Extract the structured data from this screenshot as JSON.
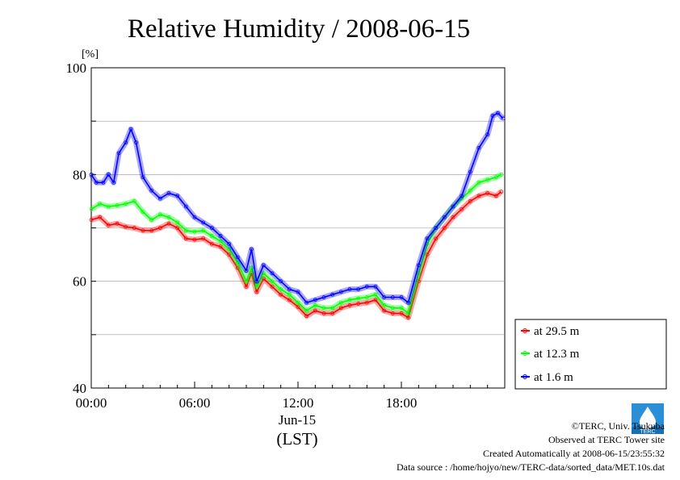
{
  "chart_data": {
    "type": "line",
    "title": "Relative Humidity / 2008-06-15",
    "ylabel": "[%]",
    "xlabel": "(LST)",
    "date_label": "Jun-15",
    "ylim": [
      40,
      100
    ],
    "yticks": [
      "40",
      "60",
      "80",
      "100"
    ],
    "xlim": [
      0,
      24
    ],
    "xticks": [
      "00:00",
      "06:00",
      "12:00",
      "18:00"
    ],
    "grid": true,
    "legend_position": "right",
    "series": [
      {
        "name": "at 29.5 m",
        "color": "#ff0000",
        "x": [
          0,
          0.5,
          1,
          1.5,
          2,
          2.5,
          3,
          3.5,
          4,
          4.5,
          5,
          5.5,
          6,
          6.5,
          7,
          7.5,
          8,
          8.5,
          9,
          9.3,
          9.6,
          10,
          10.5,
          11,
          11.5,
          12,
          12.5,
          13,
          13.5,
          14,
          14.5,
          15,
          15.5,
          16,
          16.5,
          17,
          17.5,
          18,
          18.4,
          19,
          19.5,
          20,
          20.5,
          21,
          21.5,
          22,
          22.5,
          23,
          23.5,
          23.8
        ],
        "values": [
          71.5,
          72,
          70.5,
          70.8,
          70.2,
          70,
          69.5,
          69.5,
          70,
          70.8,
          70,
          68,
          67.8,
          68,
          67,
          66.5,
          65,
          62.5,
          59,
          61.5,
          58,
          60.5,
          59,
          57.5,
          56.5,
          55.2,
          53.5,
          54.5,
          54,
          54,
          55,
          55.5,
          55.8,
          56,
          56.5,
          54.5,
          54,
          54,
          53.2,
          60,
          65,
          68,
          70,
          72,
          73.5,
          75,
          76,
          76.5,
          76,
          76.8
        ]
      },
      {
        "name": "at 12.3 m",
        "color": "#00ff00",
        "x": [
          0,
          0.5,
          1,
          1.5,
          2,
          2.5,
          3,
          3.5,
          4,
          4.5,
          5,
          5.5,
          6,
          6.5,
          7,
          7.5,
          8,
          8.5,
          9,
          9.3,
          9.6,
          10,
          10.5,
          11,
          11.5,
          12,
          12.5,
          13,
          13.5,
          14,
          14.5,
          15,
          15.5,
          16,
          16.5,
          17,
          17.5,
          18,
          18.4,
          19,
          19.5,
          20,
          20.5,
          21,
          21.5,
          22,
          22.5,
          23,
          23.5,
          23.8
        ],
        "values": [
          73.5,
          74.5,
          74,
          74.2,
          74.5,
          75,
          73,
          71.5,
          72.5,
          72,
          71,
          69.5,
          69.3,
          69.5,
          68.5,
          67.5,
          66,
          63.5,
          60,
          62.5,
          59,
          61.5,
          60,
          58.5,
          57.5,
          56,
          54.5,
          55.5,
          55,
          55,
          56,
          56.5,
          56.8,
          57,
          57.5,
          55.5,
          55,
          55,
          54,
          61.5,
          67,
          70,
          72,
          74,
          75.5,
          77,
          78.5,
          79,
          79.5,
          80
        ]
      },
      {
        "name": "at 1.6 m",
        "color": "#0000ff",
        "x": [
          0,
          0.3,
          0.7,
          1,
          1.3,
          1.6,
          2,
          2.3,
          2.6,
          3,
          3.5,
          4,
          4.5,
          5,
          5.5,
          6,
          6.5,
          7,
          7.5,
          8,
          8.5,
          9,
          9.3,
          9.6,
          10,
          10.5,
          11,
          11.5,
          12,
          12.5,
          13,
          13.5,
          14,
          14.5,
          15,
          15.5,
          16,
          16.5,
          17,
          17.5,
          18,
          18.4,
          19,
          19.5,
          20,
          20.5,
          21,
          21.5,
          22,
          22.5,
          23,
          23.3,
          23.6,
          23.9
        ],
        "values": [
          80,
          78.5,
          78.5,
          80,
          78.5,
          84,
          86,
          88.5,
          86,
          79.5,
          77,
          75.5,
          76.5,
          76,
          74,
          72,
          71,
          70,
          68.5,
          67,
          64.5,
          62,
          66,
          60,
          63,
          61.5,
          60,
          58.5,
          58,
          56,
          56.5,
          57,
          57.5,
          58,
          58.5,
          58.5,
          59,
          59,
          57,
          57,
          57,
          56,
          63,
          68,
          70,
          72,
          74,
          76,
          80.5,
          85,
          87.5,
          91,
          91.5,
          90.5
        ]
      }
    ]
  },
  "footer": {
    "copyright": "©TERC, Univ. Tsukuba",
    "observed": "Observed at TERC Tower site",
    "created": "Created Automatically at 2008-06-15/23:55:32",
    "source": "Data source : /home/hojyo/new/TERC-data/sorted_data/MET.10s.dat",
    "logo_text": "TERC"
  }
}
